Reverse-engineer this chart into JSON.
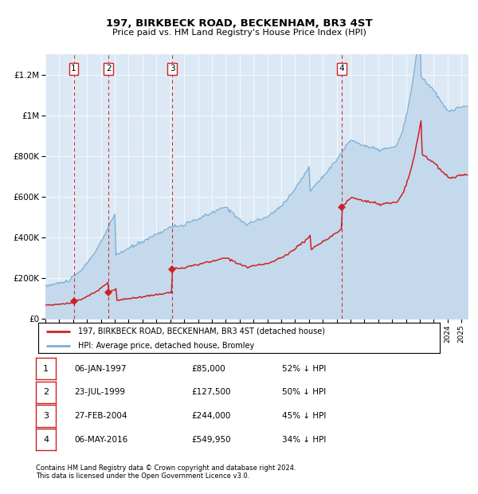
{
  "title": "197, BIRKBECK ROAD, BECKENHAM, BR3 4ST",
  "subtitle": "Price paid vs. HM Land Registry's House Price Index (HPI)",
  "legend_line1": "197, BIRKBECK ROAD, BECKENHAM, BR3 4ST (detached house)",
  "legend_line2": "HPI: Average price, detached house, Bromley",
  "footer1": "Contains HM Land Registry data © Crown copyright and database right 2024.",
  "footer2": "This data is licensed under the Open Government Licence v3.0.",
  "plot_bg": "#dce9f5",
  "hpi_color": "#7bafd4",
  "hpi_fill_color": "#c5d9ed",
  "price_color": "#cc2222",
  "xlim_start": 1995.0,
  "xlim_end": 2025.5,
  "ylim_min": 0,
  "ylim_max": 1300000,
  "yticks": [
    0,
    200000,
    400000,
    600000,
    800000,
    1000000,
    1200000
  ],
  "ytick_labels": [
    "£0",
    "£200K",
    "£400K",
    "£600K",
    "£800K",
    "£1M",
    "£1.2M"
  ],
  "sale_dates": [
    1997.04,
    1999.56,
    2004.15,
    2016.35
  ],
  "sale_prices": [
    85000,
    127500,
    244000,
    549950
  ],
  "sale_labels": [
    "1",
    "2",
    "3",
    "4"
  ],
  "table_rows": [
    [
      "1",
      "06-JAN-1997",
      "£85,000",
      "52% ↓ HPI"
    ],
    [
      "2",
      "23-JUL-1999",
      "£127,500",
      "50% ↓ HPI"
    ],
    [
      "3",
      "27-FEB-2004",
      "£244,000",
      "45% ↓ HPI"
    ],
    [
      "4",
      "06-MAY-2016",
      "£549,950",
      "34% ↓ HPI"
    ]
  ]
}
